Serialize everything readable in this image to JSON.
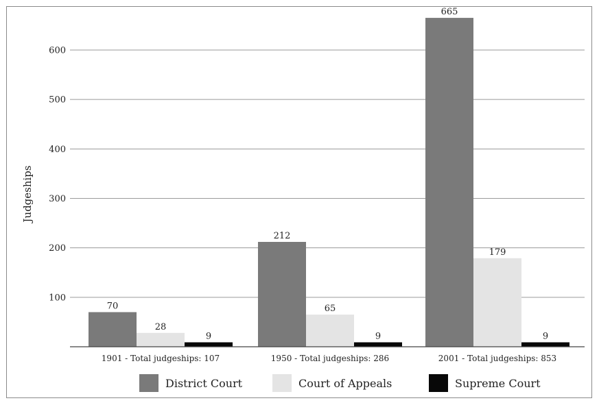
{
  "chart_data": {
    "type": "bar",
    "title": "",
    "xlabel": "",
    "ylabel": "Judgeships",
    "ylim": [
      0,
      650
    ],
    "yticks": [
      100,
      200,
      300,
      400,
      500,
      600
    ],
    "grid": true,
    "legend_position": "bottom",
    "categories": [
      "1901 - Total judgeships: 107",
      "1950 - Total judgeships: 286",
      "2001 - Total judgeships: 853"
    ],
    "series": [
      {
        "name": "District Court",
        "values": [
          70,
          212,
          665
        ],
        "color": "#7a7a7a"
      },
      {
        "name": "Court of Appeals",
        "values": [
          28,
          65,
          179
        ],
        "color": "#e4e4e4"
      },
      {
        "name": "Supreme Court",
        "values": [
          9,
          9,
          9
        ],
        "color": "#080808"
      }
    ]
  }
}
